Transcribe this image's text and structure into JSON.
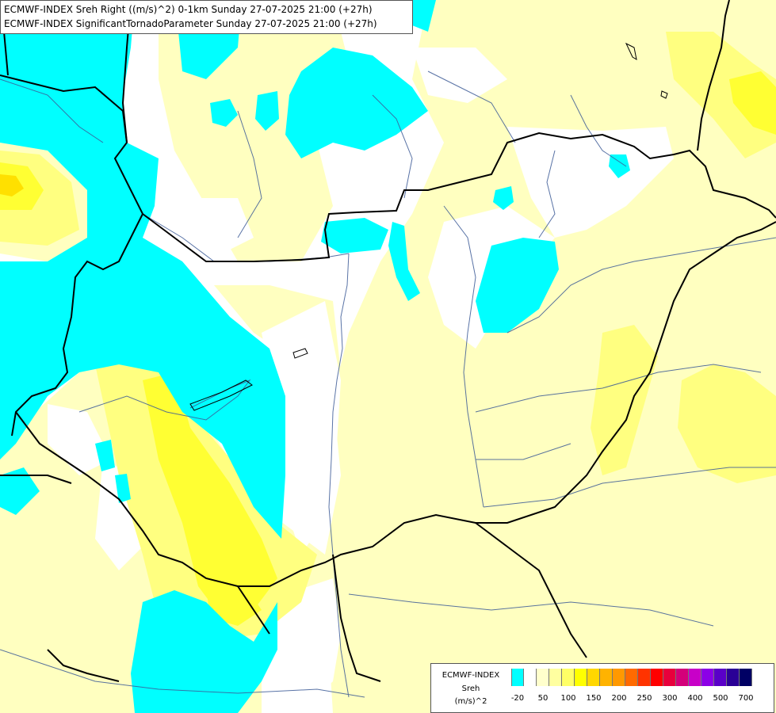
{
  "header": {
    "line1": "ECMWF-INDEX Sreh Right ((m/s)^2) 0-1km Sunday 27-07-2025 21:00 (+27h)",
    "line2": "ECMWF-INDEX SignificantTornadoParameter Sunday 27-07-2025 21:00 (+27h)"
  },
  "legend": {
    "name_line1": "ECMWF-INDEX",
    "name_line2": "Sreh",
    "unit": "(m/s)^2",
    "colors": [
      "#00ffff",
      "#ffffff",
      "#ffffcc",
      "#ffffa0",
      "#ffff66",
      "#ffff00",
      "#ffd700",
      "#ffb300",
      "#ff9900",
      "#ff6a00",
      "#ff3300",
      "#ff0000",
      "#e8003c",
      "#d4007a",
      "#c800c8",
      "#8c00e6",
      "#5a00c8",
      "#2a0096",
      "#000064"
    ],
    "ticks": [
      "-20",
      "50",
      "100",
      "150",
      "200",
      "250",
      "300",
      "400",
      "500",
      "700"
    ]
  },
  "map_colors": {
    "background": "#ffffff",
    "negative_sreh": "#00ffff",
    "light_yellow": "#ffffc0",
    "medium_yellow": "#ffff80",
    "strong_yellow": "#ffff33",
    "peak": "#ffe000",
    "border": "#000000",
    "river": "#3c5a96"
  }
}
